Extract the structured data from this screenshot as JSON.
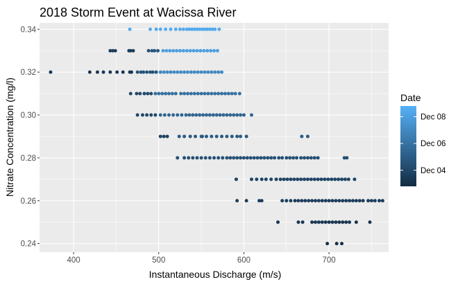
{
  "chart_data": {
    "type": "scatter",
    "title": "2018 Storm Event at Wacissa River",
    "xlabel": "Instantaneous Discharge (m/s)",
    "ylabel": "Nitrate Concentration (mg/l)",
    "xlim": [
      360,
      770
    ],
    "ylim": [
      0.236,
      0.343
    ],
    "x_ticks": [
      400,
      500,
      600,
      700
    ],
    "y_ticks": [
      0.24,
      0.26,
      0.28,
      0.3,
      0.32,
      0.34
    ],
    "x_tick_labels": [
      "400",
      "500",
      "600",
      "700"
    ],
    "y_tick_labels": [
      "0.24",
      "0.26",
      "0.28",
      "0.30",
      "0.32",
      "0.34"
    ],
    "grid": true,
    "legend": {
      "title": "Date",
      "position": "right",
      "type": "continuous-colorbar",
      "low_color": "#132B43",
      "high_color": "#56B1F7",
      "color_range_days": [
        2.8,
        8.8
      ],
      "labels": [
        "Dec 04",
        "Dec 06",
        "Dec 08"
      ],
      "label_days": [
        4,
        6,
        8
      ]
    },
    "series": [
      {
        "y": 0.34,
        "date_day": 8.5,
        "x": [
          466,
          490,
          497,
          502,
          508,
          514,
          520,
          525,
          529,
          533,
          536,
          539,
          542,
          545,
          548,
          551,
          554,
          557,
          560,
          563,
          566,
          571
        ]
      },
      {
        "y": 0.33,
        "date_day": 3.6,
        "x": [
          443,
          446,
          449,
          465,
          467,
          470
        ]
      },
      {
        "y": 0.33,
        "date_day": 4.7,
        "x": [
          488,
          492,
          495,
          499
        ]
      },
      {
        "y": 0.33,
        "date_day": 8.0,
        "x": [
          505,
          509,
          513,
          517,
          521,
          525,
          529,
          533,
          537,
          541,
          545,
          549,
          553,
          557,
          561,
          565,
          569
        ]
      },
      {
        "y": 0.32,
        "date_day": 3.3,
        "x": [
          373,
          419,
          428,
          435,
          443,
          451,
          458,
          466,
          468
        ]
      },
      {
        "y": 0.32,
        "date_day": 4.6,
        "x": [
          475,
          479,
          482,
          486,
          490,
          493,
          497
        ]
      },
      {
        "y": 0.32,
        "date_day": 7.0,
        "x": [
          502,
          506,
          510,
          514,
          518,
          522,
          526,
          530,
          534,
          538,
          542,
          546,
          550,
          554,
          558,
          562,
          566,
          570,
          574
        ]
      },
      {
        "y": 0.31,
        "date_day": 4.1,
        "x": [
          467,
          474,
          478,
          483,
          487,
          491
        ]
      },
      {
        "y": 0.31,
        "date_day": 5.9,
        "x": [
          496,
          500,
          504,
          508,
          512,
          516,
          520,
          526,
          530,
          534,
          538,
          542,
          546,
          550,
          554,
          558,
          562,
          566,
          570,
          574,
          578,
          582,
          586,
          590,
          595
        ]
      },
      {
        "y": 0.3,
        "date_day": 4.0,
        "x": [
          475,
          481,
          486,
          491,
          496
        ]
      },
      {
        "y": 0.3,
        "date_day": 5.4,
        "x": [
          502,
          507,
          512,
          517,
          522,
          527,
          532,
          536,
          540,
          544,
          548,
          552,
          556,
          560,
          564,
          568,
          572,
          576,
          580,
          584,
          588,
          592,
          596,
          600,
          609
        ]
      },
      {
        "y": 0.29,
        "date_day": 3.9,
        "x": [
          502,
          506,
          510,
          551
        ]
      },
      {
        "y": 0.29,
        "date_day": 4.9,
        "x": [
          524,
          530,
          537,
          543,
          550,
          556,
          562,
          568,
          574,
          580,
          586,
          592,
          596,
          603,
          668,
          675
        ]
      },
      {
        "y": 0.28,
        "date_day": 4.4,
        "x": [
          522,
          530,
          535,
          540,
          545,
          550,
          555,
          560,
          565,
          570,
          575,
          580,
          584,
          588,
          592,
          596,
          600,
          604,
          608,
          612,
          616,
          620,
          624,
          628,
          632,
          636,
          641,
          645,
          650,
          654,
          658,
          662,
          667,
          671,
          675,
          679,
          683,
          687,
          718,
          721
        ]
      },
      {
        "y": 0.27,
        "date_day": 3.9,
        "x": [
          591,
          609,
          615,
          621,
          626,
          632,
          638,
          643,
          647,
          651,
          655,
          659,
          663,
          667,
          671,
          675,
          679,
          683,
          687,
          691,
          695,
          699,
          703,
          707,
          711,
          715,
          719,
          723,
          730
        ]
      },
      {
        "y": 0.26,
        "date_day": 3.6,
        "x": [
          592,
          603,
          618,
          621,
          645,
          650,
          655,
          660,
          664,
          668,
          672,
          676,
          680,
          684,
          688,
          692,
          696,
          700,
          704,
          708,
          712,
          716,
          720,
          724,
          728,
          732,
          736,
          740,
          746,
          750,
          754,
          759,
          763
        ]
      },
      {
        "y": 0.25,
        "date_day": 3.3,
        "x": [
          640,
          664,
          669,
          680,
          684,
          688,
          692,
          696,
          700,
          704,
          708,
          712,
          716,
          720,
          724,
          732,
          748
        ]
      },
      {
        "y": 0.24,
        "date_day": 3.0,
        "x": [
          698,
          709,
          715
        ]
      }
    ]
  }
}
